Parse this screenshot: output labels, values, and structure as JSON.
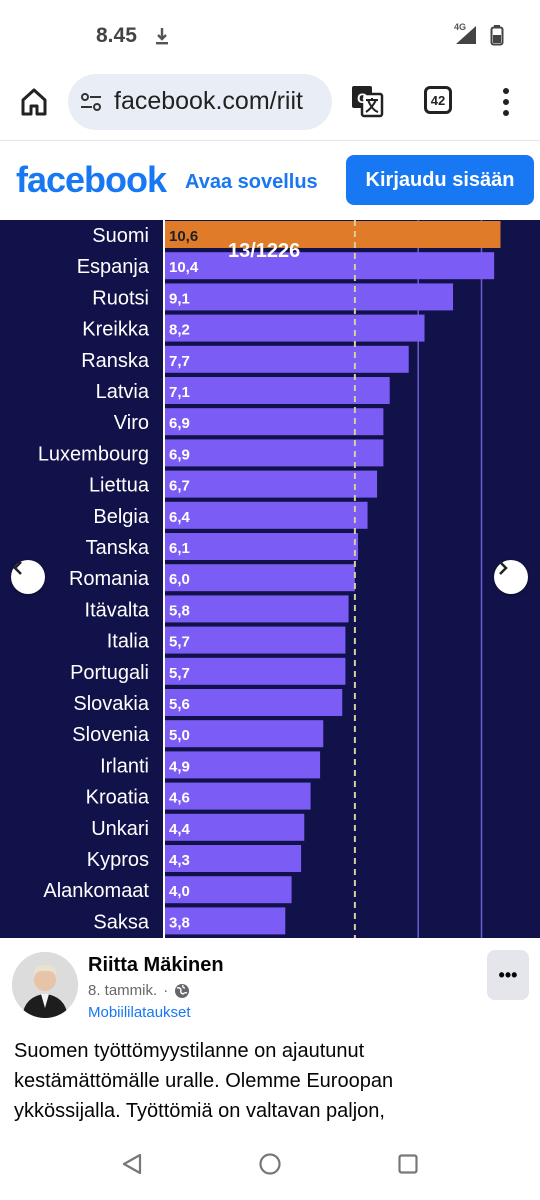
{
  "status": {
    "time": "8.45",
    "network": "4G"
  },
  "browser": {
    "url": "facebook.com/riit",
    "tab_count": "42"
  },
  "fb": {
    "logo": "facebook",
    "open_app": "Avaa sovellus",
    "login": "Kirjaudu sisään"
  },
  "image": {
    "counter": "13/1226"
  },
  "chart_data": {
    "type": "bar",
    "orientation": "horizontal",
    "categories": [
      "Suomi",
      "Espanja",
      "Ruotsi",
      "Kreikka",
      "Ranska",
      "Latvia",
      "Viro",
      "Luxembourg",
      "Liettua",
      "Belgia",
      "Tanska",
      "Romania",
      "Itävalta",
      "Italia",
      "Portugali",
      "Slovakia",
      "Slovenia",
      "Irlanti",
      "Kroatia",
      "Unkari",
      "Kypros",
      "Alankomaat",
      "Saksa"
    ],
    "values": [
      10.6,
      10.4,
      9.1,
      8.2,
      7.7,
      7.1,
      6.9,
      6.9,
      6.7,
      6.4,
      6.1,
      6.0,
      5.8,
      5.7,
      5.7,
      5.6,
      5.0,
      4.9,
      4.6,
      4.4,
      4.3,
      4.0,
      3.8
    ],
    "value_labels": [
      "10,6",
      "10,4",
      "9,1",
      "8,2",
      "7,7",
      "7,1",
      "6,9",
      "6,9",
      "6,7",
      "6,4",
      "6,1",
      "6,0",
      "5,8",
      "5,7",
      "5,7",
      "5,6",
      "5,0",
      "4,9",
      "4,6",
      "4,4",
      "4,3",
      "4,0",
      "3,8"
    ],
    "highlight_index": 0,
    "colors": {
      "bar": "#7b5cf5",
      "highlight": "#e07b2a",
      "background": "#12124a",
      "reference_line": "#d8cfa0"
    },
    "reference_value": 6.0
  },
  "post": {
    "author": "Riitta Mäkinen",
    "date": "8. tammik.",
    "group": "Mobiililataukset",
    "more": "•••",
    "text_lines": [
      "Suomen työttömyystilanne on ajautunut",
      "kestämättömälle uralle.  Olemme Euroopan",
      "ykkössijalla. Työttömiä on valtavan paljon,"
    ]
  },
  "icons": {
    "home": "home-icon",
    "site_info": "tune-icon",
    "translate": "translate-icon",
    "menu": "kebab-menu-icon",
    "prev": "chevron-left-icon",
    "next": "chevron-right-icon",
    "globe": "globe-icon"
  }
}
